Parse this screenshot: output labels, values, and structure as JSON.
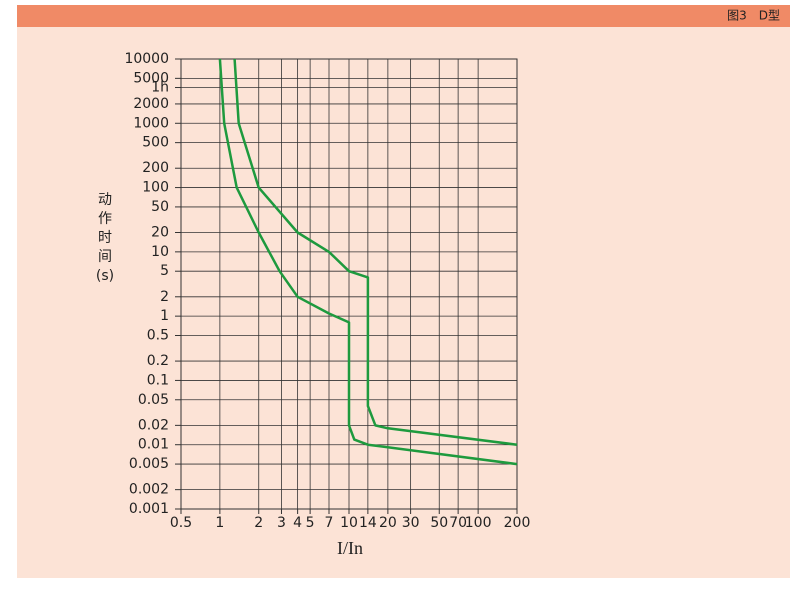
{
  "chart_data": {
    "type": "line",
    "title": "图3　D型",
    "xlabel": "I/In",
    "ylabel": [
      "动",
      "作",
      "时",
      "间",
      "(s)"
    ],
    "xlog": true,
    "ylog": true,
    "grid": true,
    "xlim": [
      0.5,
      200
    ],
    "ylim": [
      0.001,
      10000
    ],
    "xticks": [
      0.5,
      1,
      2,
      3,
      4,
      5,
      7,
      10,
      14,
      20,
      30,
      50,
      70,
      100,
      200
    ],
    "yticks": [
      10000,
      5000,
      {
        "value": 3600,
        "label": "1h"
      },
      2000,
      1000,
      500,
      200,
      100,
      50,
      20,
      10,
      5,
      2,
      1,
      0.5,
      0.2,
      0.1,
      0.05,
      0.02,
      0.01,
      0.005,
      0.002,
      0.001
    ],
    "series": [
      {
        "color": "#1e9a3e",
        "x": [
          1,
          1.08,
          1.35,
          2,
          2.9,
          4,
          7,
          10,
          10,
          11,
          14,
          200
        ],
        "values": [
          10000,
          1000,
          100,
          20,
          5,
          2,
          1.1,
          0.8,
          0.02,
          0.012,
          0.01,
          0.005
        ]
      },
      {
        "color": "#1e9a3e",
        "x": [
          1.3,
          1.4,
          2,
          4,
          7,
          10,
          14,
          14,
          16,
          20,
          200
        ],
        "values": [
          10000,
          1000,
          100,
          20,
          10,
          5,
          4,
          0.04,
          0.02,
          0.018,
          0.01
        ]
      }
    ]
  }
}
